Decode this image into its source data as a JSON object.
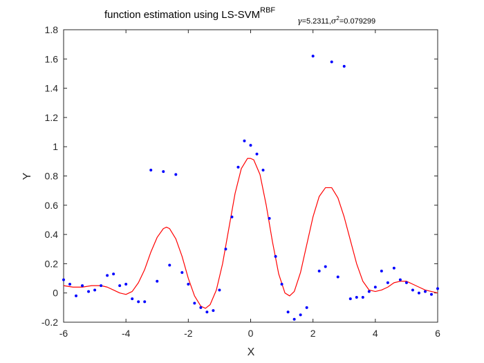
{
  "chart_data": {
    "type": "scatter",
    "title": {
      "main": "function estimation using  LS-SVM",
      "sup": "RBF",
      "sub_gamma_sym": "γ",
      "sub_gamma_val": "=5.2311,",
      "sub_sigma_sym": "σ",
      "sub_sigma_sup": "2",
      "sub_sigma_val": "=0.079299"
    },
    "xlabel": "X",
    "ylabel": "Y",
    "xlim": [
      -6,
      6
    ],
    "ylim": [
      -0.2,
      1.8
    ],
    "xticks": [
      "-6",
      "-4",
      "-2",
      "0",
      "2",
      "4",
      "6"
    ],
    "yticks": [
      "-0.2",
      "0",
      "0.2",
      "0.4",
      "0.6",
      "0.8",
      "1",
      "1.2",
      "1.4",
      "1.6",
      "1.8"
    ],
    "grid": false,
    "legend": "none",
    "colors": {
      "points": "#0000ff",
      "curve": "#ff0000",
      "axes": "#262626"
    },
    "series": [
      {
        "kind": "points",
        "points": [
          [
            -6.0,
            0.09
          ],
          [
            -5.8,
            0.06
          ],
          [
            -5.6,
            -0.02
          ],
          [
            -5.4,
            0.05
          ],
          [
            -5.2,
            0.01
          ],
          [
            -5.0,
            0.02
          ],
          [
            -4.8,
            0.05
          ],
          [
            -4.6,
            0.12
          ],
          [
            -4.4,
            0.13
          ],
          [
            -4.2,
            0.05
          ],
          [
            -4.0,
            0.06
          ],
          [
            -3.8,
            -0.04
          ],
          [
            -3.6,
            -0.06
          ],
          [
            -3.4,
            -0.06
          ],
          [
            -3.2,
            0.84
          ],
          [
            -3.0,
            0.08
          ],
          [
            -2.8,
            0.83
          ],
          [
            -2.6,
            0.19
          ],
          [
            -2.4,
            0.81
          ],
          [
            -2.2,
            0.14
          ],
          [
            -2.0,
            0.06
          ],
          [
            -1.8,
            -0.07
          ],
          [
            -1.6,
            -0.1
          ],
          [
            -1.4,
            -0.13
          ],
          [
            -1.2,
            -0.12
          ],
          [
            -1.0,
            0.02
          ],
          [
            -0.8,
            0.3
          ],
          [
            -0.6,
            0.52
          ],
          [
            -0.4,
            0.86
          ],
          [
            -0.2,
            1.04
          ],
          [
            0.0,
            1.01
          ],
          [
            0.2,
            0.95
          ],
          [
            0.4,
            0.84
          ],
          [
            0.6,
            0.51
          ],
          [
            0.8,
            0.25
          ],
          [
            1.0,
            0.06
          ],
          [
            1.2,
            -0.13
          ],
          [
            1.4,
            -0.18
          ],
          [
            1.6,
            -0.15
          ],
          [
            1.8,
            -0.1
          ],
          [
            2.0,
            1.62
          ],
          [
            2.2,
            0.15
          ],
          [
            2.4,
            0.18
          ],
          [
            2.6,
            1.58
          ],
          [
            2.8,
            0.11
          ],
          [
            3.0,
            1.55
          ],
          [
            3.2,
            -0.04
          ],
          [
            3.4,
            -0.03
          ],
          [
            3.6,
            -0.03
          ],
          [
            3.8,
            0.01
          ],
          [
            4.0,
            0.04
          ],
          [
            4.2,
            0.15
          ],
          [
            4.4,
            0.07
          ],
          [
            4.6,
            0.17
          ],
          [
            4.8,
            0.09
          ],
          [
            5.0,
            0.07
          ],
          [
            5.2,
            0.02
          ],
          [
            5.4,
            0.0
          ],
          [
            5.6,
            0.01
          ],
          [
            5.8,
            -0.01
          ],
          [
            6.0,
            0.03
          ]
        ]
      },
      {
        "kind": "line",
        "points": [
          [
            -6.0,
            0.05
          ],
          [
            -5.7,
            0.04
          ],
          [
            -5.4,
            0.04
          ],
          [
            -5.1,
            0.05
          ],
          [
            -4.8,
            0.05
          ],
          [
            -4.6,
            0.04
          ],
          [
            -4.4,
            0.02
          ],
          [
            -4.2,
            0.0
          ],
          [
            -4.0,
            -0.01
          ],
          [
            -3.8,
            0.01
          ],
          [
            -3.6,
            0.07
          ],
          [
            -3.4,
            0.16
          ],
          [
            -3.2,
            0.28
          ],
          [
            -3.0,
            0.38
          ],
          [
            -2.8,
            0.44
          ],
          [
            -2.7,
            0.45
          ],
          [
            -2.6,
            0.44
          ],
          [
            -2.4,
            0.37
          ],
          [
            -2.2,
            0.25
          ],
          [
            -2.0,
            0.1
          ],
          [
            -1.8,
            -0.02
          ],
          [
            -1.6,
            -0.09
          ],
          [
            -1.45,
            -0.105
          ],
          [
            -1.3,
            -0.08
          ],
          [
            -1.1,
            0.02
          ],
          [
            -0.9,
            0.2
          ],
          [
            -0.7,
            0.44
          ],
          [
            -0.5,
            0.68
          ],
          [
            -0.3,
            0.85
          ],
          [
            -0.1,
            0.92
          ],
          [
            0.0,
            0.92
          ],
          [
            0.1,
            0.91
          ],
          [
            0.3,
            0.81
          ],
          [
            0.5,
            0.6
          ],
          [
            0.7,
            0.35
          ],
          [
            0.9,
            0.13
          ],
          [
            1.1,
            0.0
          ],
          [
            1.25,
            -0.02
          ],
          [
            1.4,
            0.01
          ],
          [
            1.6,
            0.14
          ],
          [
            1.8,
            0.33
          ],
          [
            2.0,
            0.52
          ],
          [
            2.2,
            0.66
          ],
          [
            2.4,
            0.72
          ],
          [
            2.6,
            0.72
          ],
          [
            2.8,
            0.65
          ],
          [
            3.0,
            0.52
          ],
          [
            3.2,
            0.36
          ],
          [
            3.4,
            0.2
          ],
          [
            3.6,
            0.08
          ],
          [
            3.8,
            0.02
          ],
          [
            4.0,
            0.01
          ],
          [
            4.2,
            0.02
          ],
          [
            4.4,
            0.04
          ],
          [
            4.6,
            0.07
          ],
          [
            4.8,
            0.08
          ],
          [
            5.0,
            0.08
          ],
          [
            5.2,
            0.06
          ],
          [
            5.4,
            0.04
          ],
          [
            5.6,
            0.02
          ],
          [
            5.8,
            0.01
          ],
          [
            6.0,
            0.0
          ]
        ]
      }
    ]
  }
}
